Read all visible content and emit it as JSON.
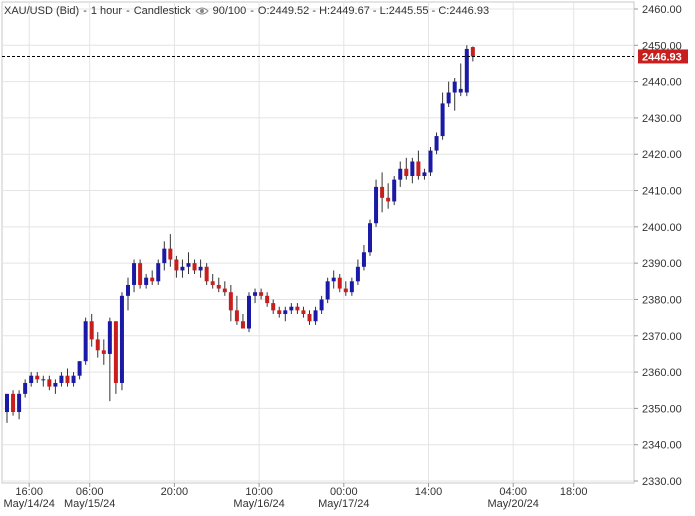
{
  "header": {
    "symbol": "XAU/USD (Bid)",
    "interval": "1 hour",
    "chart_style": "Candlestick",
    "visibility": "90/100",
    "ohlc_label": "O:2449.52 - H:2449.67 - L:2445.55 - C:2446.93"
  },
  "colors": {
    "up": "#1a1aa6",
    "down": "#c81e1e",
    "grid": "#e4e4e4",
    "price_line": "#000000",
    "price_tag": "#c81e1e"
  },
  "chart_data": {
    "type": "candlestick",
    "ylim": [
      2330,
      2462
    ],
    "y_ticks": [
      2330,
      2340,
      2350,
      2360,
      2370,
      2380,
      2390,
      2400,
      2410,
      2420,
      2430,
      2440,
      2450,
      2460
    ],
    "y_tick_labels": [
      "2330.00",
      "2340.00",
      "2350.00",
      "2360.00",
      "2370.00",
      "2380.00",
      "2390.00",
      "2400.00",
      "2410.00",
      "2420.00",
      "2430.00",
      "2440.00",
      "2450.00",
      "2460.00"
    ],
    "x_ticks": [
      {
        "bar": 4,
        "time": "16:00",
        "date": "May/14/24"
      },
      {
        "bar": 14,
        "time": "06:00",
        "date": "May/15/24"
      },
      {
        "bar": 28,
        "time": "20:00",
        "date": ""
      },
      {
        "bar": 42,
        "time": "10:00",
        "date": "May/16/24"
      },
      {
        "bar": 56,
        "time": "00:00",
        "date": "May/17/24"
      },
      {
        "bar": 70,
        "time": "14:00",
        "date": ""
      },
      {
        "bar": 84,
        "time": "04:00",
        "date": "May/20/24"
      },
      {
        "bar": 94,
        "time": "18:00",
        "date": ""
      }
    ],
    "current_price": 2446.93,
    "current_price_label": "2446.93",
    "candles": [
      [
        2349,
        2354,
        2346,
        2354
      ],
      [
        2354,
        2355,
        2348,
        2349
      ],
      [
        2349,
        2355,
        2347,
        2354
      ],
      [
        2354,
        2358,
        2353,
        2357
      ],
      [
        2357,
        2360,
        2356,
        2359
      ],
      [
        2359,
        2360,
        2357,
        2358
      ],
      [
        2358,
        2359,
        2356,
        2358
      ],
      [
        2358,
        2359,
        2355,
        2356
      ],
      [
        2356,
        2358,
        2354,
        2357
      ],
      [
        2357,
        2360,
        2356,
        2359
      ],
      [
        2359,
        2361,
        2356,
        2357
      ],
      [
        2357,
        2360,
        2356,
        2359
      ],
      [
        2359,
        2363,
        2358,
        2363
      ],
      [
        2363,
        2375,
        2362,
        2374
      ],
      [
        2374,
        2376,
        2367,
        2369
      ],
      [
        2369,
        2371,
        2364,
        2366
      ],
      [
        2366,
        2369,
        2362,
        2365
      ],
      [
        2365,
        2375,
        2352,
        2374
      ],
      [
        2374,
        2374,
        2354,
        2357
      ],
      [
        2357,
        2382,
        2355,
        2381
      ],
      [
        2381,
        2386,
        2377,
        2384
      ],
      [
        2384,
        2391,
        2382,
        2390
      ],
      [
        2390,
        2391,
        2383,
        2384
      ],
      [
        2384,
        2387,
        2383,
        2386
      ],
      [
        2386,
        2388,
        2384,
        2385
      ],
      [
        2385,
        2391,
        2384,
        2390
      ],
      [
        2390,
        2396,
        2388,
        2394
      ],
      [
        2394,
        2398,
        2389,
        2391
      ],
      [
        2391,
        2392,
        2386,
        2388
      ],
      [
        2388,
        2391,
        2386,
        2389
      ],
      [
        2389,
        2393,
        2387,
        2390
      ],
      [
        2390,
        2391,
        2387,
        2388
      ],
      [
        2388,
        2391,
        2386,
        2389
      ],
      [
        2389,
        2390,
        2384,
        2385
      ],
      [
        2385,
        2387,
        2383,
        2384
      ],
      [
        2384,
        2386,
        2382,
        2383
      ],
      [
        2383,
        2385,
        2381,
        2382
      ],
      [
        2382,
        2384,
        2374,
        2377
      ],
      [
        2377,
        2381,
        2373,
        2374
      ],
      [
        2374,
        2376,
        2372,
        2372
      ],
      [
        2372,
        2382,
        2371,
        2381
      ],
      [
        2381,
        2383,
        2379,
        2382
      ],
      [
        2382,
        2383,
        2380,
        2381
      ],
      [
        2381,
        2382,
        2378,
        2379
      ],
      [
        2379,
        2380,
        2376,
        2377
      ],
      [
        2377,
        2378,
        2375,
        2376
      ],
      [
        2376,
        2378,
        2374,
        2377
      ],
      [
        2377,
        2379,
        2376,
        2378
      ],
      [
        2378,
        2379,
        2376,
        2377
      ],
      [
        2377,
        2378,
        2375,
        2376
      ],
      [
        2376,
        2377,
        2373,
        2374
      ],
      [
        2374,
        2378,
        2373,
        2377
      ],
      [
        2377,
        2381,
        2376,
        2380
      ],
      [
        2380,
        2386,
        2379,
        2385
      ],
      [
        2385,
        2388,
        2383,
        2386
      ],
      [
        2386,
        2387,
        2382,
        2383
      ],
      [
        2383,
        2385,
        2381,
        2382
      ],
      [
        2382,
        2386,
        2381,
        2385
      ],
      [
        2385,
        2391,
        2384,
        2389
      ],
      [
        2389,
        2395,
        2388,
        2393
      ],
      [
        2393,
        2402,
        2392,
        2401
      ],
      [
        2401,
        2413,
        2400,
        2411
      ],
      [
        2411,
        2415,
        2404,
        2408
      ],
      [
        2408,
        2412,
        2405,
        2407
      ],
      [
        2407,
        2414,
        2406,
        2413
      ],
      [
        2413,
        2418,
        2411,
        2416
      ],
      [
        2416,
        2419,
        2413,
        2414
      ],
      [
        2414,
        2419,
        2412,
        2418
      ],
      [
        2418,
        2421,
        2413,
        2414
      ],
      [
        2414,
        2416,
        2413,
        2415
      ],
      [
        2415,
        2422,
        2414,
        2421
      ],
      [
        2421,
        2426,
        2420,
        2425
      ],
      [
        2425,
        2437,
        2424,
        2434
      ],
      [
        2434,
        2440,
        2433,
        2437
      ],
      [
        2437,
        2441,
        2432,
        2440
      ],
      [
        2437,
        2445,
        2436,
        2438
      ],
      [
        2437,
        2450,
        2436,
        2449
      ],
      [
        2449.52,
        2449.67,
        2445.55,
        2446.93
      ]
    ]
  }
}
